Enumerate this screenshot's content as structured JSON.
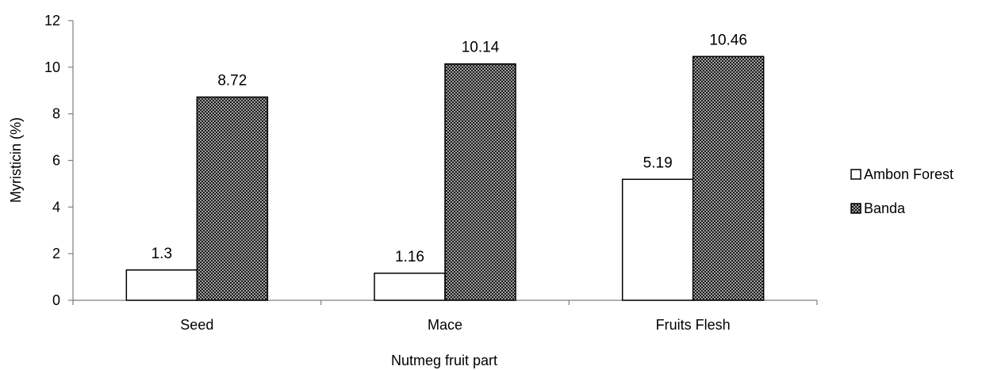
{
  "chart_data": {
    "type": "bar",
    "categories": [
      "Seed",
      "Mace",
      "Fruits Flesh"
    ],
    "series": [
      {
        "name": "Ambon Forest",
        "values": [
          1.3,
          1.16,
          5.19
        ],
        "data_labels": [
          "1.3",
          "1.16",
          "5.19"
        ],
        "fill": "white"
      },
      {
        "name": "Banda",
        "values": [
          8.72,
          10.14,
          10.46
        ],
        "data_labels": [
          "8.72",
          "10.14",
          "10.46"
        ],
        "fill": "dotted-pattern"
      }
    ],
    "title": "",
    "xlabel": "Nutmeg fruit part",
    "ylabel": "Myristicin (%)",
    "ylim": [
      0,
      12
    ],
    "yticks": [
      "0",
      "2",
      "4",
      "6",
      "8",
      "10",
      "12"
    ],
    "grid": false,
    "legend_position": "right"
  },
  "colors": {
    "bar_stroke": "#000000",
    "axis": "#7f7f7f",
    "banda_background": "#1a1a1a",
    "banda_dots": "#ffffff",
    "ambon_fill": "#ffffff"
  }
}
